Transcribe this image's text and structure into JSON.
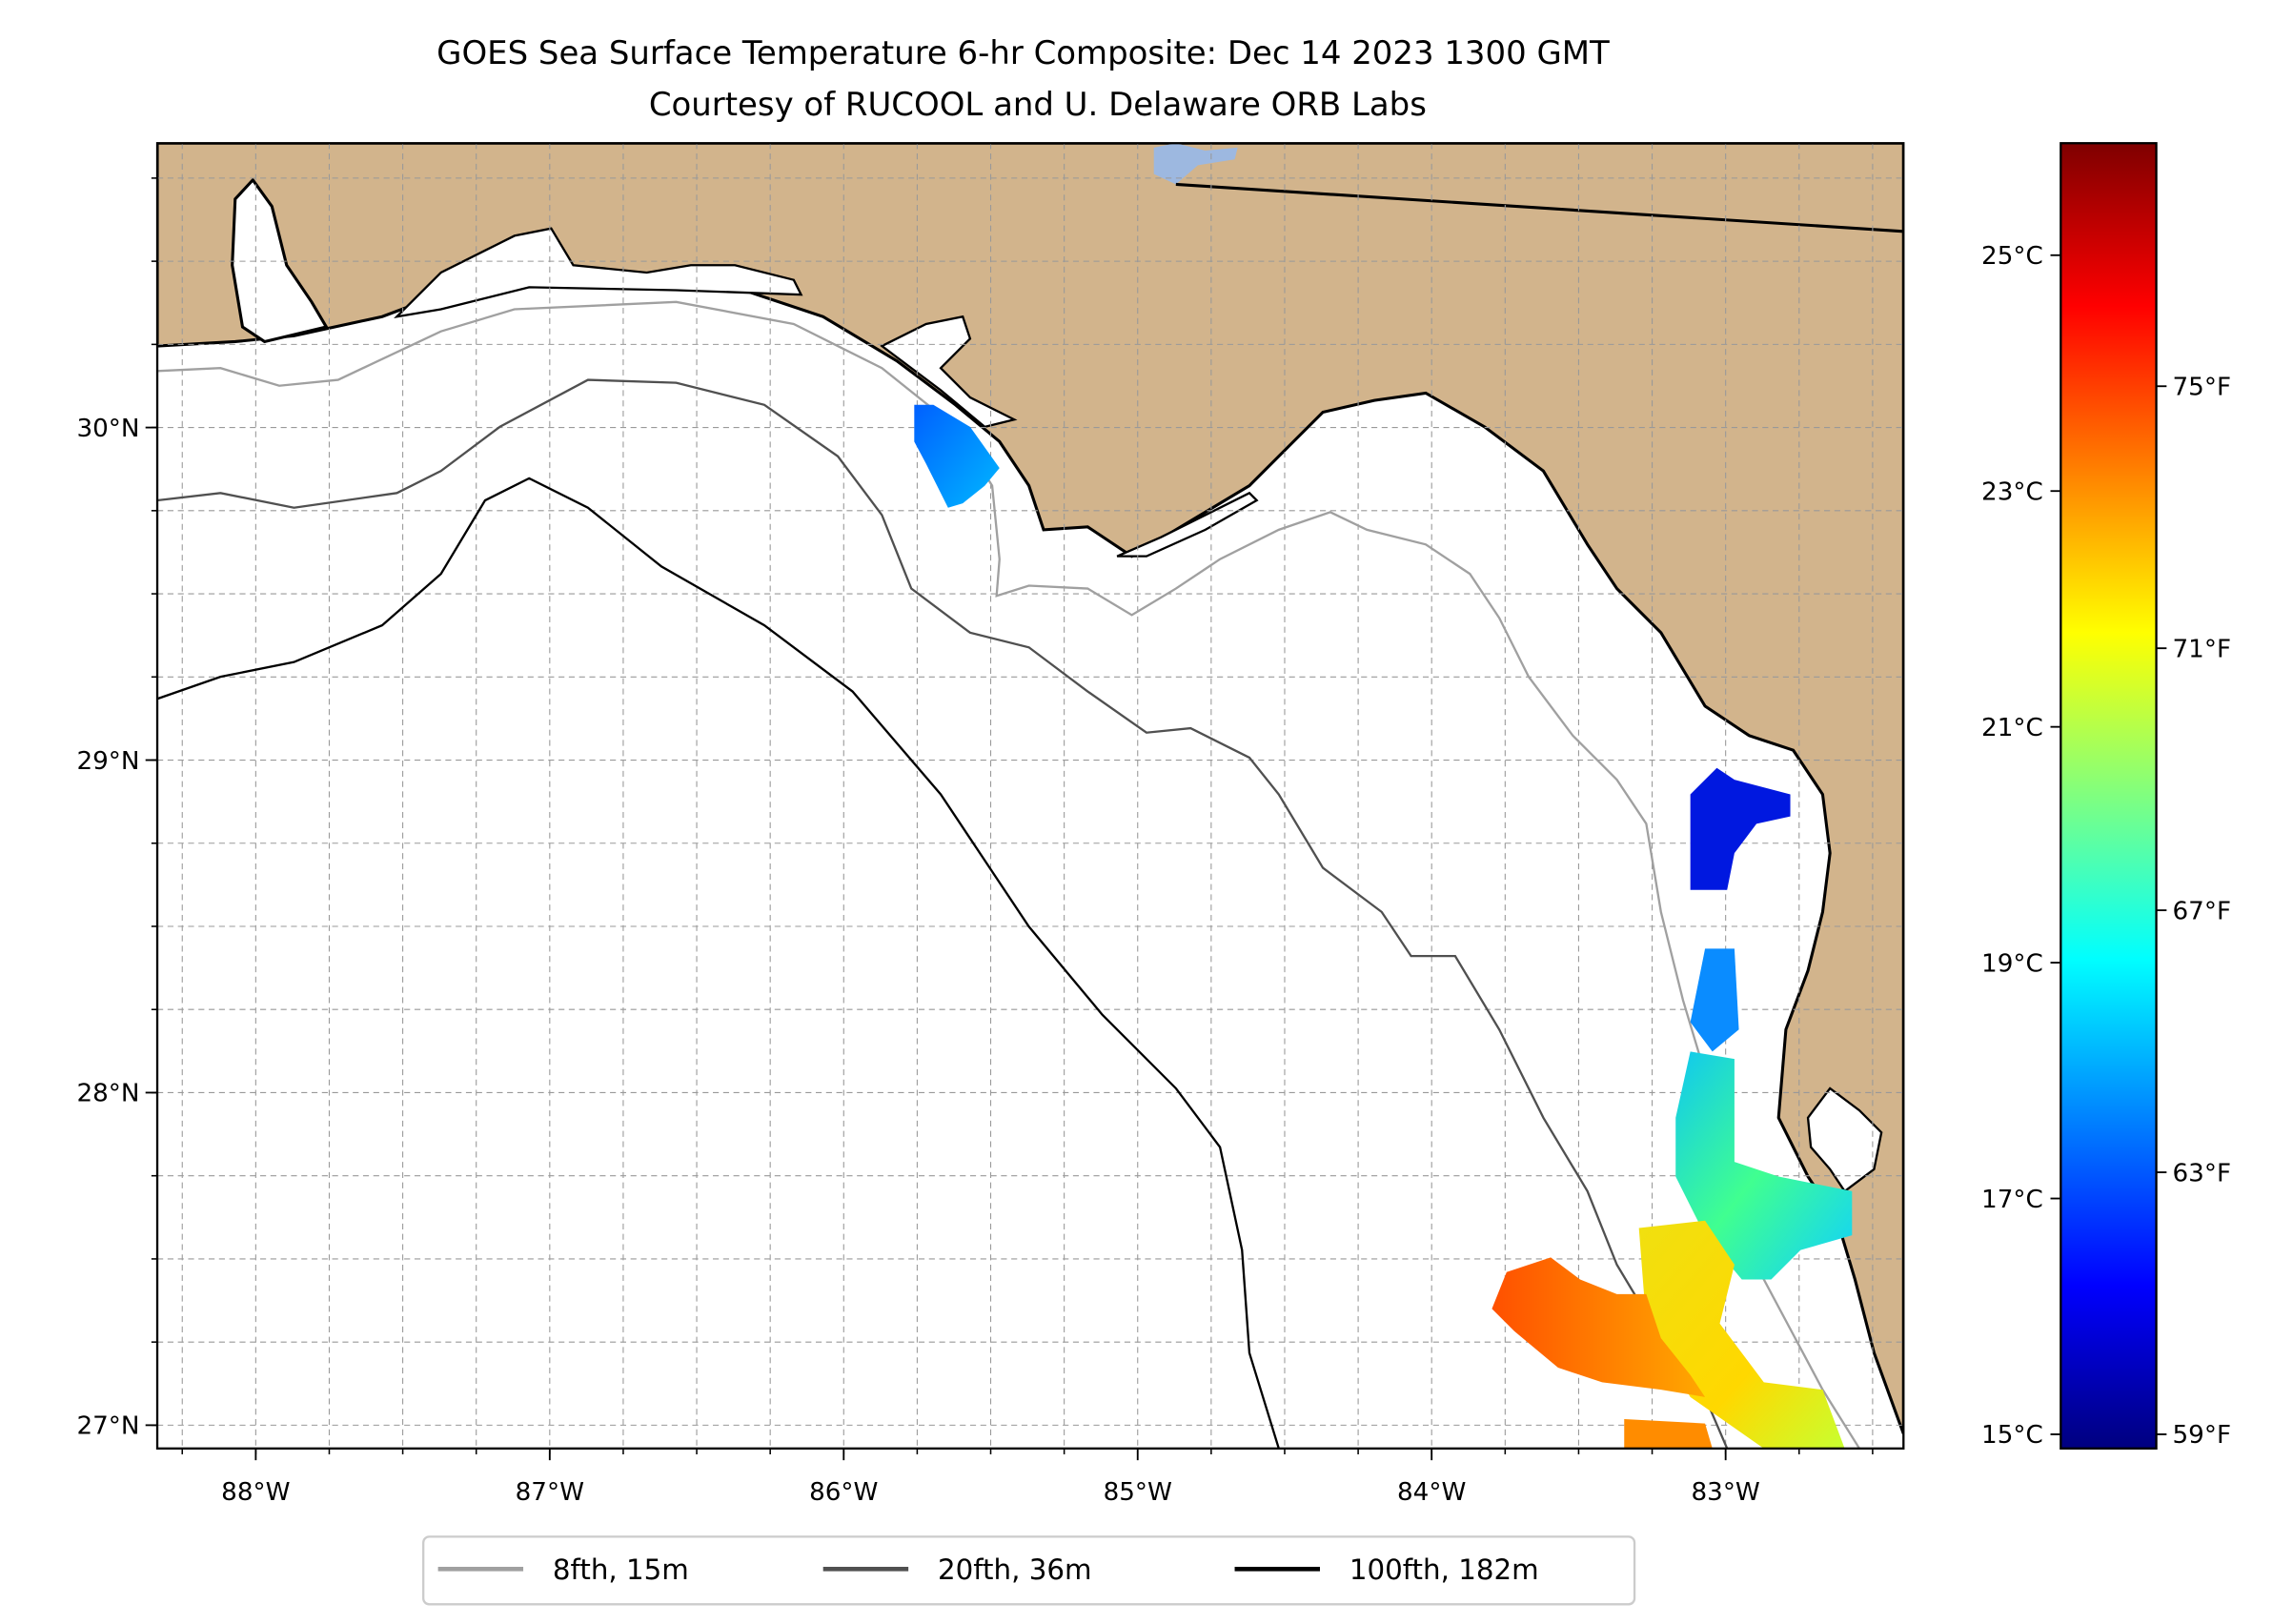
{
  "title": {
    "line1": "GOES Sea Surface Temperature 6-hr Composite: Dec 14 2023 1300 GMT",
    "line2": "Courtesy of RUCOOL and U. Delaware ORB Labs"
  },
  "map": {
    "extent_lon": [
      -88.335,
      -82.395
    ],
    "extent_lat": [
      26.93,
      30.855
    ],
    "lon_ticks": [
      {
        "v": -88,
        "label": "88°W"
      },
      {
        "v": -87,
        "label": "87°W"
      },
      {
        "v": -86,
        "label": "86°W"
      },
      {
        "v": -85,
        "label": "85°W"
      },
      {
        "v": -84,
        "label": "84°W"
      },
      {
        "v": -83,
        "label": "83°W"
      }
    ],
    "lat_ticks": [
      {
        "v": 30,
        "label": "30°N"
      },
      {
        "v": 29,
        "label": "29°N"
      },
      {
        "v": 28,
        "label": "28°N"
      },
      {
        "v": 27,
        "label": "27°N"
      }
    ],
    "grid_step_deg": 0.25,
    "colors": {
      "land": "#d2b48c",
      "ocean": "#ffffff",
      "lake": "#9db8e0"
    }
  },
  "legend": [
    {
      "label": "8fth, 15m",
      "color": "#a0a0a0"
    },
    {
      "label": "20fth, 36m",
      "color": "#505050"
    },
    {
      "label": "100fth, 182m",
      "color": "#000000"
    }
  ],
  "colorbar": {
    "cmap": "jet",
    "range_c": [
      14.88,
      25.95
    ],
    "c_ticks": [
      {
        "v": 15,
        "label": "15°C"
      },
      {
        "v": 17,
        "label": "17°C"
      },
      {
        "v": 19,
        "label": "19°C"
      },
      {
        "v": 21,
        "label": "21°C"
      },
      {
        "v": 23,
        "label": "23°C"
      },
      {
        "v": 25,
        "label": "25°C"
      }
    ],
    "f_ticks": [
      {
        "v": 59,
        "label": "59°F"
      },
      {
        "v": 63,
        "label": "63°F"
      },
      {
        "v": 67,
        "label": "67°F"
      },
      {
        "v": 71,
        "label": "71°F"
      },
      {
        "v": 75,
        "label": "75°F"
      }
    ]
  }
}
